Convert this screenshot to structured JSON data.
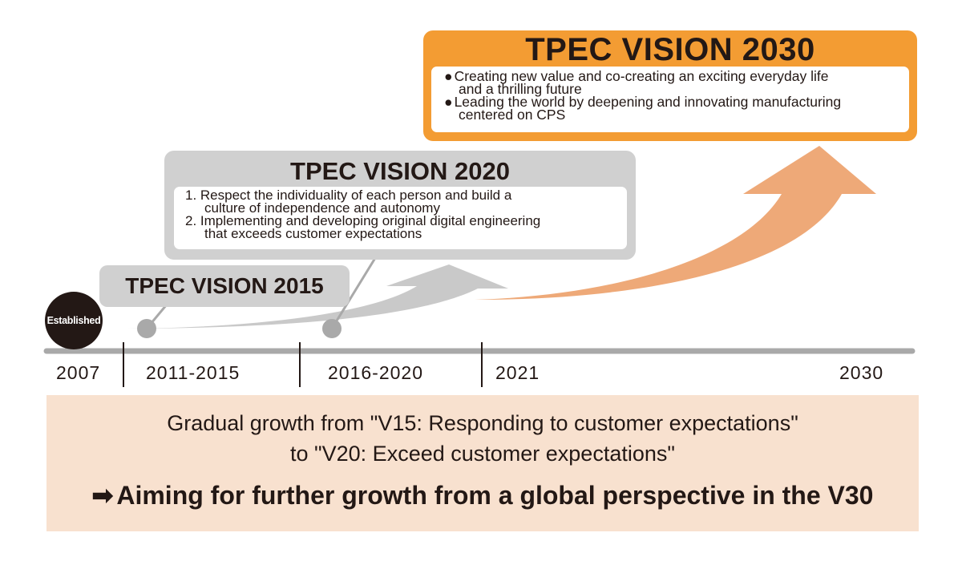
{
  "vision_2030": {
    "title": "TPEC VISION 2030",
    "items": [
      {
        "bullet": "●",
        "lines": [
          "Creating new value and co-creating an exciting everyday life",
          "and a thrilling future"
        ]
      },
      {
        "bullet": "●",
        "lines": [
          "Leading the world by deepening and innovating manufacturing",
          "centered on CPS"
        ]
      }
    ]
  },
  "vision_2020": {
    "title": "TPEC VISION 2020",
    "items": [
      {
        "lines": [
          "1. Respect the individuality of each person and build a",
          "culture of independence and autonomy"
        ]
      },
      {
        "lines": [
          "2. Implementing and developing original digital engineering",
          "that exceeds customer expectations"
        ]
      }
    ]
  },
  "vision_2015": {
    "title": "TPEC VISION 2015"
  },
  "timeline": {
    "established_label": "Established",
    "years": [
      "2007",
      "2011-2015",
      "2016-2020",
      "2021",
      "2030"
    ]
  },
  "summary": {
    "line1": "Gradual growth from \"V15: Responding to customer expectations\"",
    "line2": "to \"V20: Exceed customer expectations\"",
    "arrow": "➡",
    "line3": "Aiming for further growth from a global perspective in the V30"
  },
  "colors": {
    "orange": "#f39c33",
    "orange_arrow": "#eea978",
    "gray_box": "#d0d0d0",
    "gray_arrow": "#c9c9c9",
    "timeline_gray": "#a9a9a9",
    "dark": "#231815",
    "summary_bg": "#f8e1cf"
  }
}
